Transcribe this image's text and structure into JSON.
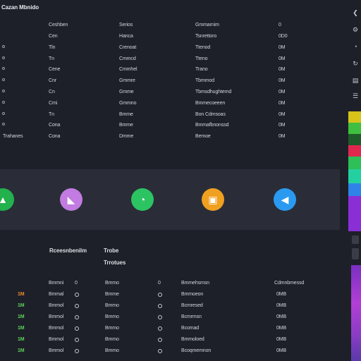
{
  "window": {
    "title": "Cazan Mbnido"
  },
  "top_table": {
    "header": [
      "Ceshben",
      "Serios",
      "Gmmarnim",
      "0"
    ],
    "rows": [
      {
        "c1": "Cen",
        "c2": "Hanca",
        "c3": "Tsnrettoro",
        "c4": "0D0",
        "bullet": false,
        "lead": ""
      },
      {
        "c1": "Tln",
        "c2": "Crenoat",
        "c3": "Ttenod",
        "c4": "0M",
        "bullet": true,
        "lead": ""
      },
      {
        "c1": "Tn",
        "c2": "Cmmcd",
        "c3": "Tteno",
        "c4": "0M",
        "bullet": true,
        "lead": ""
      },
      {
        "c1": "Cene",
        "c2": "Cmmhel",
        "c3": "Trano",
        "c4": "0M",
        "bullet": true,
        "lead": ""
      },
      {
        "c1": "Cnr",
        "c2": "Gmmre",
        "c3": "Tbmmod",
        "c4": "0M",
        "bullet": true,
        "lead": ""
      },
      {
        "c1": "Cn",
        "c2": "Gmme",
        "c3": "Tbmsdhughtemd",
        "c4": "0M",
        "bullet": true,
        "lead": ""
      },
      {
        "c1": "Cmi",
        "c2": "Gmmno",
        "c3": "Bmmecoeeen",
        "c4": "0M",
        "bullet": true,
        "lead": ""
      },
      {
        "c1": "Tn",
        "c2": "Bmme",
        "c3": "Bon Cdmsoas",
        "c4": "0M",
        "bullet": true,
        "lead": ""
      },
      {
        "c1": "Cona",
        "c2": "Bmme",
        "c3": "Bmmafbnonssd",
        "c4": "0M",
        "bullet": true,
        "lead": ""
      },
      {
        "c1": "Cona",
        "c2": "Dmme",
        "c3": "Bemoe",
        "c4": "0M",
        "bullet": false,
        "lead": "Trahanes"
      }
    ]
  },
  "app_icons": [
    {
      "name": "green-app-icon",
      "glyph": "▲",
      "color": "#22b14c"
    },
    {
      "name": "purple-app-icon",
      "glyph": "◣",
      "color": "#c27be0"
    },
    {
      "name": "chat-app-icon",
      "glyph": "◔",
      "color": "#2cc462"
    },
    {
      "name": "orange-app-icon",
      "glyph": "▣",
      "color": "#f0a020"
    },
    {
      "name": "blue-app-icon",
      "glyph": "◀",
      "color": "#2a9af0"
    }
  ],
  "lower": {
    "sub1": "Rceesnbenilm",
    "sub2": "Trobe",
    "sub3": "Trrotues",
    "header": [
      "Bmmni",
      "0",
      "Bmmo",
      "0",
      "Bmmehsmsn",
      "Cdmnbmessd"
    ],
    "rows": [
      {
        "tag": "1M",
        "c1": "Bmmal",
        "c2": "Bmme",
        "c3": "Bmmoeon",
        "c4": "0MB"
      },
      {
        "tag": "1M",
        "c1": "Bmmol",
        "c2": "Bmmo",
        "c3": "Bcmresed",
        "c4": "0MB"
      },
      {
        "tag": "1M",
        "c1": "Bmmol",
        "c2": "Bmmo",
        "c3": "Bcmrmsn",
        "c4": "0MB"
      },
      {
        "tag": "1M",
        "c1": "Bmmol",
        "c2": "Bmmo",
        "c3": "Bcomad",
        "c4": "0MB"
      },
      {
        "tag": "1M",
        "c1": "Bmmol",
        "c2": "Bmmo",
        "c3": "Bmmoloed",
        "c4": "0MB"
      },
      {
        "tag": "1M",
        "c1": "Bmmol",
        "c2": "Bmmo",
        "c3": "Bcoqmemnon",
        "c4": "0MB"
      }
    ]
  },
  "right_rail_colors": [
    "#d8c31a",
    "#3fbf3f",
    "#1e5a2a",
    "#e0284f",
    "#2fbf57",
    "#23d0a0",
    "#2f83e8",
    "#8a2fd6",
    "#8a2fd6"
  ]
}
